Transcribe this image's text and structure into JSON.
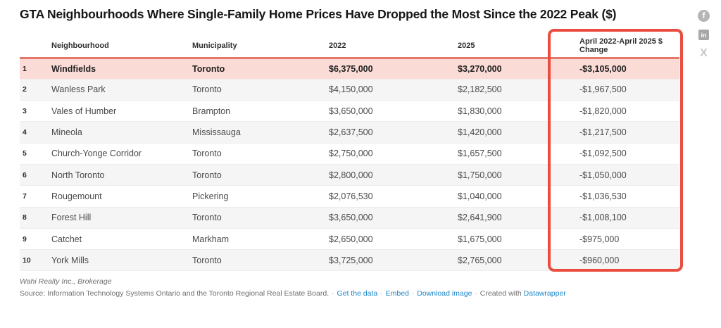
{
  "title": "GTA Neighbourhoods Where Single-Family Home Prices Have Dropped the Most Since the 2022 Peak ($)",
  "social": {
    "facebook_glyph": "f",
    "linkedin_glyph": "in",
    "x_glyph": "X"
  },
  "table": {
    "columns": [
      "Neighbourhood",
      "Municipality",
      "2022",
      "2025",
      "April 2022-April 2025 $ Change"
    ],
    "rows": [
      {
        "rank": "1",
        "neighbourhood": "Windfields",
        "municipality": "Toronto",
        "price_2022": "$6,375,000",
        "price_2025": "$3,270,000",
        "change": "-$3,105,000",
        "highlight": true
      },
      {
        "rank": "2",
        "neighbourhood": "Wanless Park",
        "municipality": "Toronto",
        "price_2022": "$4,150,000",
        "price_2025": "$2,182,500",
        "change": "-$1,967,500",
        "highlight": false
      },
      {
        "rank": "3",
        "neighbourhood": "Vales of Humber",
        "municipality": "Brampton",
        "price_2022": "$3,650,000",
        "price_2025": "$1,830,000",
        "change": "-$1,820,000",
        "highlight": false
      },
      {
        "rank": "4",
        "neighbourhood": "Mineola",
        "municipality": "Mississauga",
        "price_2022": "$2,637,500",
        "price_2025": "$1,420,000",
        "change": "-$1,217,500",
        "highlight": false
      },
      {
        "rank": "5",
        "neighbourhood": "Church-Yonge Corridor",
        "municipality": "Toronto",
        "price_2022": "$2,750,000",
        "price_2025": "$1,657,500",
        "change": "-$1,092,500",
        "highlight": false
      },
      {
        "rank": "6",
        "neighbourhood": "North Toronto",
        "municipality": "Toronto",
        "price_2022": "$2,800,000",
        "price_2025": "$1,750,000",
        "change": "-$1,050,000",
        "highlight": false
      },
      {
        "rank": "7",
        "neighbourhood": "Rougemount",
        "municipality": "Pickering",
        "price_2022": "$2,076,530",
        "price_2025": "$1,040,000",
        "change": "-$1,036,530",
        "highlight": false
      },
      {
        "rank": "8",
        "neighbourhood": "Forest Hill",
        "municipality": "Toronto",
        "price_2022": "$3,650,000",
        "price_2025": "$2,641,900",
        "change": "-$1,008,100",
        "highlight": false
      },
      {
        "rank": "9",
        "neighbourhood": "Catchet",
        "municipality": "Markham",
        "price_2022": "$2,650,000",
        "price_2025": "$1,675,000",
        "change": "-$975,000",
        "highlight": false
      },
      {
        "rank": "10",
        "neighbourhood": "York Mills",
        "municipality": "Toronto",
        "price_2022": "$3,725,000",
        "price_2025": "$2,765,000",
        "change": "-$960,000",
        "highlight": false
      }
    ]
  },
  "footer": {
    "byline": "Wahi Realty Inc., Brokerage",
    "source_prefix": "Source: Information Technology Systems Ontario and the Toronto Regional Real Estate Board.",
    "separator": "·",
    "links": [
      "Get the data",
      "Embed",
      "Download image"
    ],
    "created_with": "Created with",
    "datawrapper": "Datawrapper"
  },
  "colors": {
    "annotation_red": "#ea4c3f",
    "highlight_row_pink": "#fadbd6",
    "header_rule_salmon": "#e1786a",
    "stripe_gray": "#f5f5f5",
    "link_blue": "#1e87c8"
  },
  "chart_data": {
    "type": "table",
    "title": "GTA Neighbourhoods Where Single-Family Home Prices Have Dropped the Most Since the 2022 Peak ($)",
    "categories": [
      "Windfields",
      "Wanless Park",
      "Vales of Humber",
      "Mineola",
      "Church-Yonge Corridor",
      "North Toronto",
      "Rougemount",
      "Forest Hill",
      "Catchet",
      "York Mills"
    ],
    "series": [
      {
        "name": "2022",
        "values": [
          6375000,
          4150000,
          3650000,
          2637500,
          2750000,
          2800000,
          2076530,
          3650000,
          2650000,
          3725000
        ]
      },
      {
        "name": "2025",
        "values": [
          3270000,
          2182500,
          1830000,
          1420000,
          1657500,
          1750000,
          1040000,
          2641900,
          1675000,
          2765000
        ]
      },
      {
        "name": "April 2022-April 2025 $ Change",
        "values": [
          -3105000,
          -1967500,
          -1820000,
          -1217500,
          -1092500,
          -1050000,
          -1036530,
          -1008100,
          -975000,
          -960000
        ]
      }
    ],
    "municipalities": [
      "Toronto",
      "Toronto",
      "Brampton",
      "Mississauga",
      "Toronto",
      "Toronto",
      "Pickering",
      "Toronto",
      "Markham",
      "Toronto"
    ],
    "highlighted_row": "Windfields",
    "annotation": "red box around $ Change column"
  }
}
